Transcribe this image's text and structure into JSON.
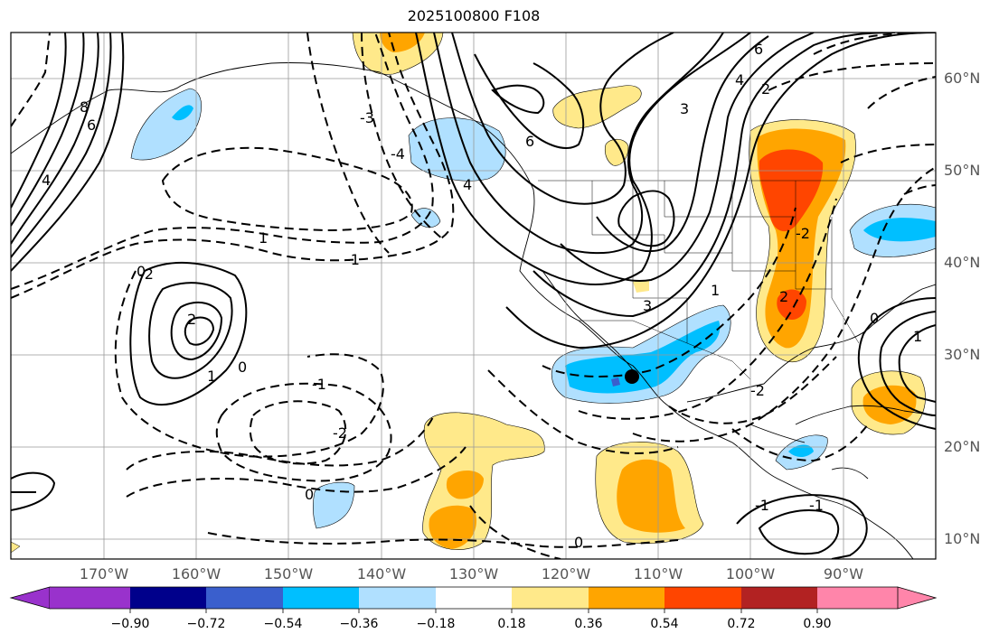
{
  "title": "2025100800 F108",
  "lon_labels": [
    "170°W",
    "160°W",
    "150°W",
    "140°W",
    "130°W",
    "120°W",
    "110°W",
    "100°W",
    "90°W"
  ],
  "lat_labels": [
    "60°N",
    "50°N",
    "40°N",
    "30°N",
    "20°N",
    "10°N"
  ],
  "colorbar": {
    "ticks": [
      "−0.90",
      "−0.72",
      "−0.54",
      "−0.36",
      "−0.18",
      "0.18",
      "0.36",
      "0.54",
      "0.72",
      "0.90"
    ],
    "colors": [
      "#9932cc",
      "#00008b",
      "#3a5fcd",
      "#00bfff",
      "#b0e0ff",
      "#ffffff",
      "#ffe98a",
      "#ffa500",
      "#ff4500",
      "#b22222",
      "#ff85aa"
    ]
  },
  "contour_labels": [
    "8",
    "6",
    "4",
    "6",
    "4",
    "3",
    "2",
    "1",
    "0",
    "-1",
    "-2",
    "-3",
    "-4",
    "2",
    "1",
    "0",
    "-1",
    "-2",
    "0",
    "0",
    "6",
    "4",
    "3",
    "2",
    "1",
    "-2",
    "0",
    "-1",
    "-1",
    "1",
    "-2"
  ],
  "marker": "storm-center"
}
